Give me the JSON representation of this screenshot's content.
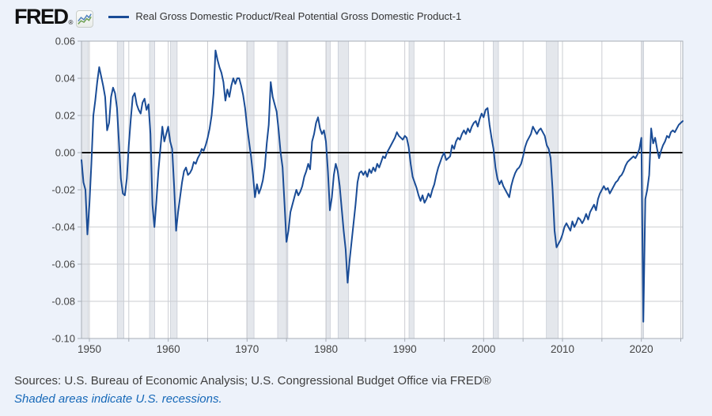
{
  "header": {
    "logo_text": "FRED",
    "logo_registered": "®",
    "legend_label": "Real Gross Domestic Product/Real Potential Gross Domestic Product-1"
  },
  "footer": {
    "sources": "Sources: U.S. Bureau of Economic Analysis; U.S. Congressional Budget Office via FRED®",
    "note": "Shaded areas indicate U.S. recessions."
  },
  "colors": {
    "series": "#1a4c96",
    "zero_line": "#111111",
    "grid": "#cbcdd2",
    "recession_fill": "#e4e7ec",
    "recession_edge": "#c6cbd4",
    "plot_border": "#a7adb6",
    "plot_bg": "#ffffff",
    "canvas_bg": "#edf2fa",
    "axis_text": "#444444",
    "source_text": "#3f3f3f",
    "note_blue": "#1668b8",
    "logo_blue": "#4f81bd",
    "logo_green": "#6a9e4f"
  },
  "chart_data": {
    "type": "line",
    "title": "",
    "xlabel": "",
    "ylabel": "",
    "xlim": [
      1949,
      2025.25
    ],
    "ylim": [
      -0.1,
      0.06
    ],
    "x_ticks": [
      1950,
      1960,
      1970,
      1980,
      1990,
      2000,
      2010,
      2020
    ],
    "x_gridline_step": 5,
    "y_ticks": [
      0.06,
      0.04,
      0.02,
      0.0,
      -0.02,
      -0.04,
      -0.06,
      -0.08,
      -0.1
    ],
    "y_tick_labels": [
      "0.06",
      "0.04",
      "0.02",
      "0.00",
      "-0.02",
      "-0.04",
      "-0.06",
      "-0.08",
      "-0.10"
    ],
    "grid": true,
    "legend_position": "top",
    "zero_line": 0,
    "recessions": [
      [
        1949.0,
        1949.83
      ],
      [
        1953.54,
        1954.38
      ],
      [
        1957.63,
        1958.29
      ],
      [
        1960.29,
        1961.13
      ],
      [
        1969.96,
        1970.88
      ],
      [
        1973.88,
        1975.17
      ],
      [
        1980.04,
        1980.54
      ],
      [
        1981.54,
        1982.88
      ],
      [
        1990.54,
        1991.17
      ],
      [
        2001.21,
        2001.88
      ],
      [
        2007.96,
        2009.46
      ],
      [
        2020.13,
        2020.29
      ]
    ],
    "series": [
      {
        "name": "Real Gross Domestic Product/Real Potential Gross Domestic Product-1",
        "start_year": 1949,
        "period_years": 0.25,
        "values": [
          -0.004,
          -0.016,
          -0.02,
          -0.044,
          -0.028,
          -0.006,
          0.02,
          0.028,
          0.038,
          0.046,
          0.041,
          0.036,
          0.03,
          0.012,
          0.016,
          0.03,
          0.035,
          0.032,
          0.024,
          0.006,
          -0.014,
          -0.022,
          -0.023,
          -0.014,
          0.004,
          0.018,
          0.03,
          0.032,
          0.026,
          0.023,
          0.021,
          0.027,
          0.029,
          0.023,
          0.026,
          0.01,
          -0.028,
          -0.04,
          -0.026,
          -0.01,
          0.002,
          0.014,
          0.006,
          0.01,
          0.014,
          0.006,
          0.002,
          -0.018,
          -0.042,
          -0.032,
          -0.024,
          -0.016,
          -0.01,
          -0.008,
          -0.012,
          -0.011,
          -0.009,
          -0.005,
          -0.006,
          -0.003,
          -0.001,
          0.002,
          0.001,
          0.004,
          0.008,
          0.013,
          0.02,
          0.032,
          0.055,
          0.05,
          0.046,
          0.043,
          0.038,
          0.028,
          0.034,
          0.03,
          0.036,
          0.04,
          0.037,
          0.04,
          0.04,
          0.036,
          0.031,
          0.024,
          0.014,
          0.006,
          -0.002,
          -0.012,
          -0.024,
          -0.017,
          -0.022,
          -0.019,
          -0.015,
          -0.008,
          0.005,
          0.015,
          0.038,
          0.03,
          0.026,
          0.022,
          0.012,
          0.0,
          -0.008,
          -0.028,
          -0.048,
          -0.042,
          -0.032,
          -0.028,
          -0.024,
          -0.02,
          -0.023,
          -0.021,
          -0.018,
          -0.013,
          -0.01,
          -0.006,
          -0.009,
          0.006,
          0.01,
          0.016,
          0.019,
          0.013,
          0.01,
          0.012,
          0.006,
          -0.01,
          -0.031,
          -0.024,
          -0.012,
          -0.006,
          -0.01,
          -0.018,
          -0.03,
          -0.042,
          -0.052,
          -0.07,
          -0.058,
          -0.048,
          -0.038,
          -0.028,
          -0.016,
          -0.011,
          -0.01,
          -0.012,
          -0.01,
          -0.013,
          -0.009,
          -0.011,
          -0.008,
          -0.01,
          -0.006,
          -0.008,
          -0.005,
          -0.002,
          -0.003,
          0.0,
          0.002,
          0.004,
          0.006,
          0.008,
          0.011,
          0.009,
          0.008,
          0.007,
          0.009,
          0.008,
          0.003,
          -0.006,
          -0.013,
          -0.016,
          -0.019,
          -0.023,
          -0.026,
          -0.023,
          -0.027,
          -0.025,
          -0.022,
          -0.024,
          -0.02,
          -0.017,
          -0.012,
          -0.008,
          -0.005,
          -0.002,
          0.0,
          -0.004,
          -0.003,
          -0.002,
          0.004,
          0.002,
          0.006,
          0.008,
          0.007,
          0.01,
          0.012,
          0.01,
          0.013,
          0.011,
          0.014,
          0.016,
          0.017,
          0.014,
          0.018,
          0.021,
          0.019,
          0.023,
          0.024,
          0.015,
          0.008,
          0.002,
          -0.008,
          -0.014,
          -0.017,
          -0.015,
          -0.018,
          -0.02,
          -0.022,
          -0.024,
          -0.018,
          -0.014,
          -0.011,
          -0.009,
          -0.008,
          -0.006,
          -0.002,
          0.003,
          0.006,
          0.008,
          0.01,
          0.014,
          0.012,
          0.01,
          0.012,
          0.013,
          0.011,
          0.009,
          0.004,
          0.002,
          -0.003,
          -0.02,
          -0.042,
          -0.051,
          -0.049,
          -0.047,
          -0.044,
          -0.04,
          -0.038,
          -0.04,
          -0.042,
          -0.037,
          -0.04,
          -0.038,
          -0.035,
          -0.036,
          -0.038,
          -0.036,
          -0.033,
          -0.036,
          -0.032,
          -0.03,
          -0.028,
          -0.031,
          -0.025,
          -0.022,
          -0.02,
          -0.018,
          -0.02,
          -0.019,
          -0.022,
          -0.02,
          -0.018,
          -0.016,
          -0.015,
          -0.013,
          -0.012,
          -0.01,
          -0.007,
          -0.005,
          -0.004,
          -0.003,
          -0.002,
          -0.003,
          -0.001,
          0.002,
          0.008,
          -0.091,
          -0.025,
          -0.02,
          -0.012,
          0.013,
          0.005,
          0.008,
          0.002,
          -0.003,
          0.001,
          0.004,
          0.006,
          0.009,
          0.008,
          0.011,
          0.012,
          0.011,
          0.013,
          0.015,
          0.016,
          0.017
        ]
      }
    ]
  }
}
